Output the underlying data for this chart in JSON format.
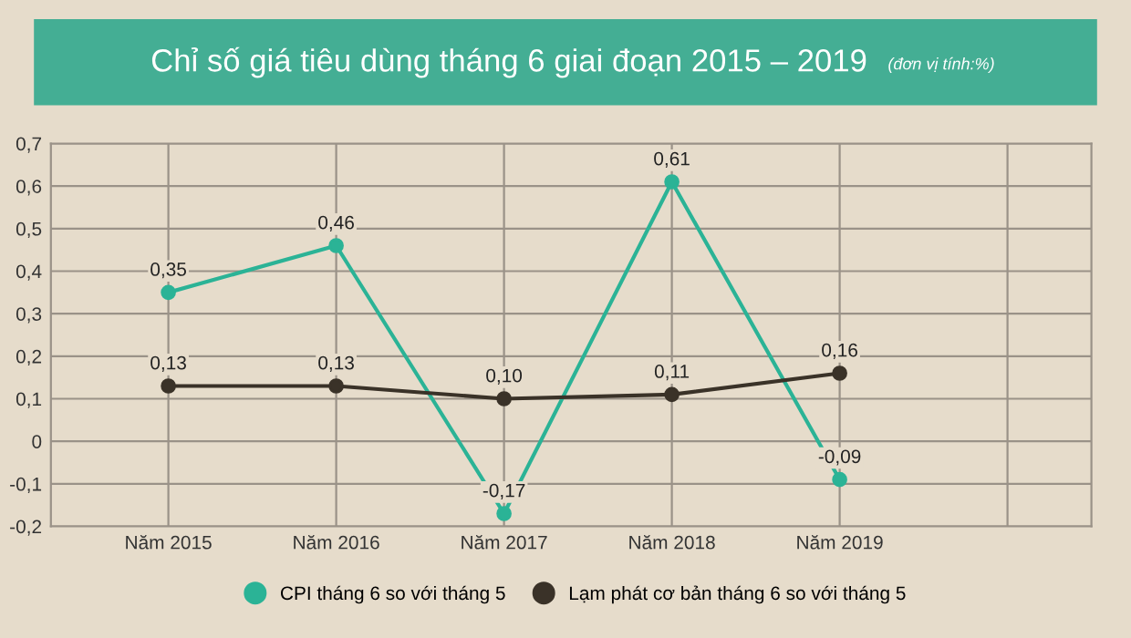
{
  "chart_data": {
    "type": "line",
    "title": "Chỉ số giá tiêu dùng tháng 6 giai đoạn 2015 – 2019",
    "subtitle": "(đơn vị tính:%)",
    "categories": [
      "Năm 2015",
      "Năm 2016",
      "Năm 2017",
      "Năm 2018",
      "Năm 2019",
      null
    ],
    "series": [
      {
        "name": "CPI tháng 6 so với tháng 5",
        "color": "#2bb396",
        "values": [
          0.35,
          0.46,
          -0.17,
          0.61,
          -0.09,
          null
        ],
        "value_labels": [
          "0,35",
          "0,46",
          "-0,17",
          "0,61",
          "-0,09",
          null
        ]
      },
      {
        "name": "Lạm phát cơ bản tháng 6 so với tháng 5",
        "color": "#3a3228",
        "values": [
          0.13,
          0.13,
          0.1,
          0.11,
          0.16,
          null
        ],
        "value_labels": [
          "0,13",
          "0,13",
          "0,10",
          "0,11",
          "0,16",
          null
        ]
      }
    ],
    "ylim": [
      -0.2,
      0.7
    ],
    "yticks": [
      {
        "value": 0.7,
        "label": "0,7"
      },
      {
        "value": 0.6,
        "label": "0,6"
      },
      {
        "value": 0.5,
        "label": "0,5"
      },
      {
        "value": 0.4,
        "label": "0,4"
      },
      {
        "value": 0.3,
        "label": "0,3"
      },
      {
        "value": 0.2,
        "label": "0,2"
      },
      {
        "value": 0.1,
        "label": "0,1"
      },
      0,
      {
        "value": -0.1,
        "label": "-0,1"
      },
      {
        "value": -0.2,
        "label": "-0,2"
      }
    ],
    "grid": true,
    "legend": "bottom",
    "marker": "circle",
    "line_style": "solid"
  }
}
